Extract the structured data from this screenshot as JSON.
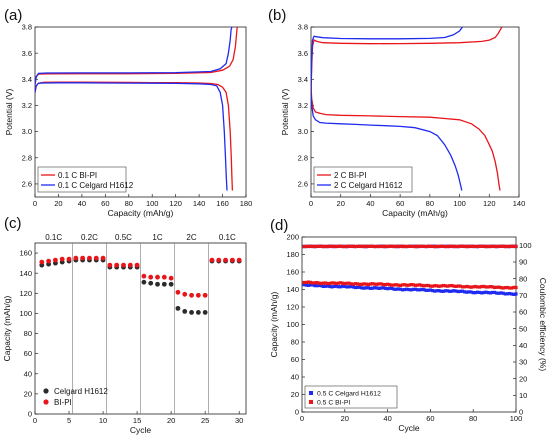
{
  "colors": {
    "red": "#e8161b",
    "blue": "#1f2bf0",
    "black": "#2b2b2b"
  },
  "chart_data": [
    {
      "panel_label": "(a)",
      "type": "line",
      "xlabel": "Capacity (mAh/g)",
      "ylabel": "Potential (V)",
      "xlim": [
        0,
        180
      ],
      "ylim": [
        2.5,
        3.8
      ],
      "xticks": [
        "0",
        "20",
        "40",
        "60",
        "80",
        "100",
        "120",
        "140",
        "160",
        "180"
      ],
      "yticks": [
        "2.6",
        "2.8",
        "3.0",
        "3.2",
        "3.4",
        "3.6",
        "3.8"
      ],
      "legend_position": "bottom-left",
      "series": [
        {
          "name": "0.1 C BI-PI",
          "color": "red",
          "segments": [
            {
              "x": [
                0,
                1,
                3,
                8,
                20,
                40,
                60,
                80,
                100,
                120,
                140,
                150,
                156,
                160,
                163,
                165,
                166.5,
                167.5,
                168,
                168.4
              ],
              "y": [
                3.3,
                3.35,
                3.37,
                3.377,
                3.378,
                3.378,
                3.377,
                3.376,
                3.375,
                3.374,
                3.372,
                3.368,
                3.36,
                3.34,
                3.3,
                3.2,
                3.0,
                2.8,
                2.65,
                2.55
              ]
            },
            {
              "x": [
                0,
                1,
                3,
                10,
                40,
                80,
                120,
                150,
                160,
                166,
                169,
                171,
                172,
                172.5
              ],
              "y": [
                3.36,
                3.42,
                3.44,
                3.442,
                3.443,
                3.443,
                3.445,
                3.452,
                3.47,
                3.5,
                3.55,
                3.65,
                3.75,
                3.8
              ]
            }
          ]
        },
        {
          "name": "0.1 C Celgard H1612",
          "color": "blue",
          "segments": [
            {
              "x": [
                0,
                1,
                3,
                8,
                20,
                40,
                60,
                80,
                100,
                120,
                140,
                150,
                155,
                158,
                160,
                161.5,
                162.5,
                163.2,
                163.8
              ],
              "y": [
                3.3,
                3.35,
                3.37,
                3.372,
                3.373,
                3.373,
                3.372,
                3.371,
                3.37,
                3.369,
                3.366,
                3.36,
                3.35,
                3.3,
                3.2,
                3.0,
                2.8,
                2.65,
                2.55
              ]
            },
            {
              "x": [
                0,
                1,
                3,
                10,
                40,
                80,
                120,
                150,
                158,
                163,
                165,
                166.5,
                167.3,
                168
              ],
              "y": [
                3.36,
                3.42,
                3.445,
                3.448,
                3.449,
                3.449,
                3.451,
                3.46,
                3.48,
                3.52,
                3.6,
                3.7,
                3.78,
                3.8
              ]
            }
          ]
        }
      ]
    },
    {
      "panel_label": "(b)",
      "type": "line",
      "xlabel": "Capacity (mAh/g)",
      "ylabel": "Potential (V)",
      "xlim": [
        0,
        140
      ],
      "ylim": [
        2.5,
        3.8
      ],
      "xticks": [
        "0",
        "20",
        "40",
        "60",
        "80",
        "100",
        "120",
        "140"
      ],
      "yticks": [
        "2.6",
        "2.8",
        "3.0",
        "3.2",
        "3.4",
        "3.6",
        "3.8"
      ],
      "legend_position": "bottom-left",
      "series": [
        {
          "name": "2 C BI-PI",
          "color": "red",
          "segments": [
            {
              "x": [
                0,
                0.5,
                1.5,
                3,
                6,
                10,
                20,
                40,
                60,
                80,
                90,
                100,
                108,
                113,
                117,
                120,
                122,
                124,
                125.5,
                126.5,
                127.2
              ],
              "y": [
                3.35,
                3.25,
                3.18,
                3.15,
                3.14,
                3.13,
                3.125,
                3.12,
                3.115,
                3.11,
                3.1,
                3.09,
                3.06,
                3.02,
                2.97,
                2.9,
                2.85,
                2.77,
                2.68,
                2.6,
                2.55
              ]
            },
            {
              "x": [
                0,
                0.5,
                1,
                2,
                4,
                8,
                20,
                40,
                60,
                80,
                100,
                115,
                120,
                124,
                126,
                127.5,
                128.5
              ],
              "y": [
                3.3,
                3.5,
                3.65,
                3.7,
                3.69,
                3.68,
                3.675,
                3.672,
                3.673,
                3.675,
                3.68,
                3.69,
                3.7,
                3.72,
                3.75,
                3.78,
                3.8
              ]
            }
          ]
        },
        {
          "name": "2 C Celgard H1612",
          "color": "blue",
          "segments": [
            {
              "x": [
                0,
                0.5,
                1.5,
                3,
                6,
                10,
                20,
                30,
                40,
                50,
                60,
                70,
                80,
                85,
                90,
                94,
                97,
                99,
                100.5,
                101.5
              ],
              "y": [
                3.3,
                3.2,
                3.12,
                3.09,
                3.07,
                3.065,
                3.06,
                3.055,
                3.05,
                3.045,
                3.04,
                3.03,
                3.0,
                2.97,
                2.9,
                2.82,
                2.74,
                2.67,
                2.6,
                2.55
              ]
            },
            {
              "x": [
                0,
                0.5,
                1,
                2,
                4,
                8,
                20,
                40,
                60,
                80,
                90,
                96,
                100,
                102
              ],
              "y": [
                3.3,
                3.55,
                3.7,
                3.73,
                3.725,
                3.718,
                3.712,
                3.71,
                3.71,
                3.713,
                3.72,
                3.74,
                3.77,
                3.8
              ]
            }
          ]
        }
      ]
    },
    {
      "panel_label": "(c)",
      "type": "scatter",
      "xlabel": "Cycle",
      "ylabel": "Capacity (mAh/g)",
      "xlim": [
        0,
        31
      ],
      "ylim": [
        0,
        170
      ],
      "xticks": [
        "0",
        "5",
        "10",
        "15",
        "20",
        "25",
        "30"
      ],
      "yticks": [
        "0",
        "20",
        "40",
        "60",
        "80",
        "100",
        "120",
        "140",
        "160"
      ],
      "rate_dividers": [
        5.5,
        10.5,
        15.5,
        20.5,
        25.5
      ],
      "rate_labels": [
        "0.1C",
        "0.2C",
        "0.5C",
        "1C",
        "2C",
        "0.1C"
      ],
      "legend_position": "bottom-left",
      "series": [
        {
          "name": "Celgard H1612",
          "color": "black",
          "x": [
            1,
            2,
            3,
            4,
            5,
            6,
            7,
            8,
            9,
            10,
            11,
            12,
            13,
            14,
            15,
            16,
            17,
            18,
            19,
            20,
            21,
            22,
            23,
            24,
            25,
            26,
            27,
            28,
            29,
            30
          ],
          "y": [
            148,
            149,
            150,
            151,
            152,
            153,
            153,
            153,
            153,
            153,
            146,
            146,
            146,
            146,
            146,
            131,
            130,
            129,
            129,
            129,
            105,
            102,
            101,
            101,
            101,
            152,
            152,
            152,
            152,
            152
          ]
        },
        {
          "name": "BI-PI",
          "color": "red",
          "x": [
            1,
            2,
            3,
            4,
            5,
            6,
            7,
            8,
            9,
            10,
            11,
            12,
            13,
            14,
            15,
            16,
            17,
            18,
            19,
            20,
            21,
            22,
            23,
            24,
            25,
            26,
            27,
            28,
            29,
            30
          ],
          "y": [
            151,
            152,
            153,
            154,
            154,
            155,
            155,
            155,
            155,
            155,
            148,
            148,
            148,
            148,
            148,
            137,
            136,
            136,
            136,
            135,
            121,
            119,
            118,
            118,
            118,
            153,
            153,
            153,
            153,
            153
          ]
        }
      ]
    },
    {
      "panel_label": "(d)",
      "type": "scatter",
      "xlabel": "Cycle",
      "ylabel": "Capacity (mAh/g)",
      "ylabel_right": "Coulombic efficiency (%)",
      "xlim": [
        0,
        100
      ],
      "ylim": [
        0,
        200
      ],
      "ylim_right": [
        0,
        105
      ],
      "xticks": [
        "0",
        "20",
        "40",
        "60",
        "80",
        "100"
      ],
      "yticks": [
        "0",
        "20",
        "40",
        "60",
        "80",
        "100",
        "120",
        "140",
        "160",
        "180",
        "200"
      ],
      "yticks_right": [
        "0",
        "10",
        "20",
        "30",
        "40",
        "50",
        "60",
        "70",
        "80",
        "90",
        "100"
      ],
      "legend_position": "bottom-left",
      "series": [
        {
          "name": "0.5 C Celgard H1612",
          "color": "blue",
          "marker": "square",
          "capacity_start": 145,
          "capacity_end": 135,
          "efficiency": 99.5
        },
        {
          "name": "0.5 C BI-PI",
          "color": "red",
          "marker": "square",
          "capacity_start": 148,
          "capacity_end": 142,
          "efficiency": 99.5
        }
      ]
    }
  ]
}
